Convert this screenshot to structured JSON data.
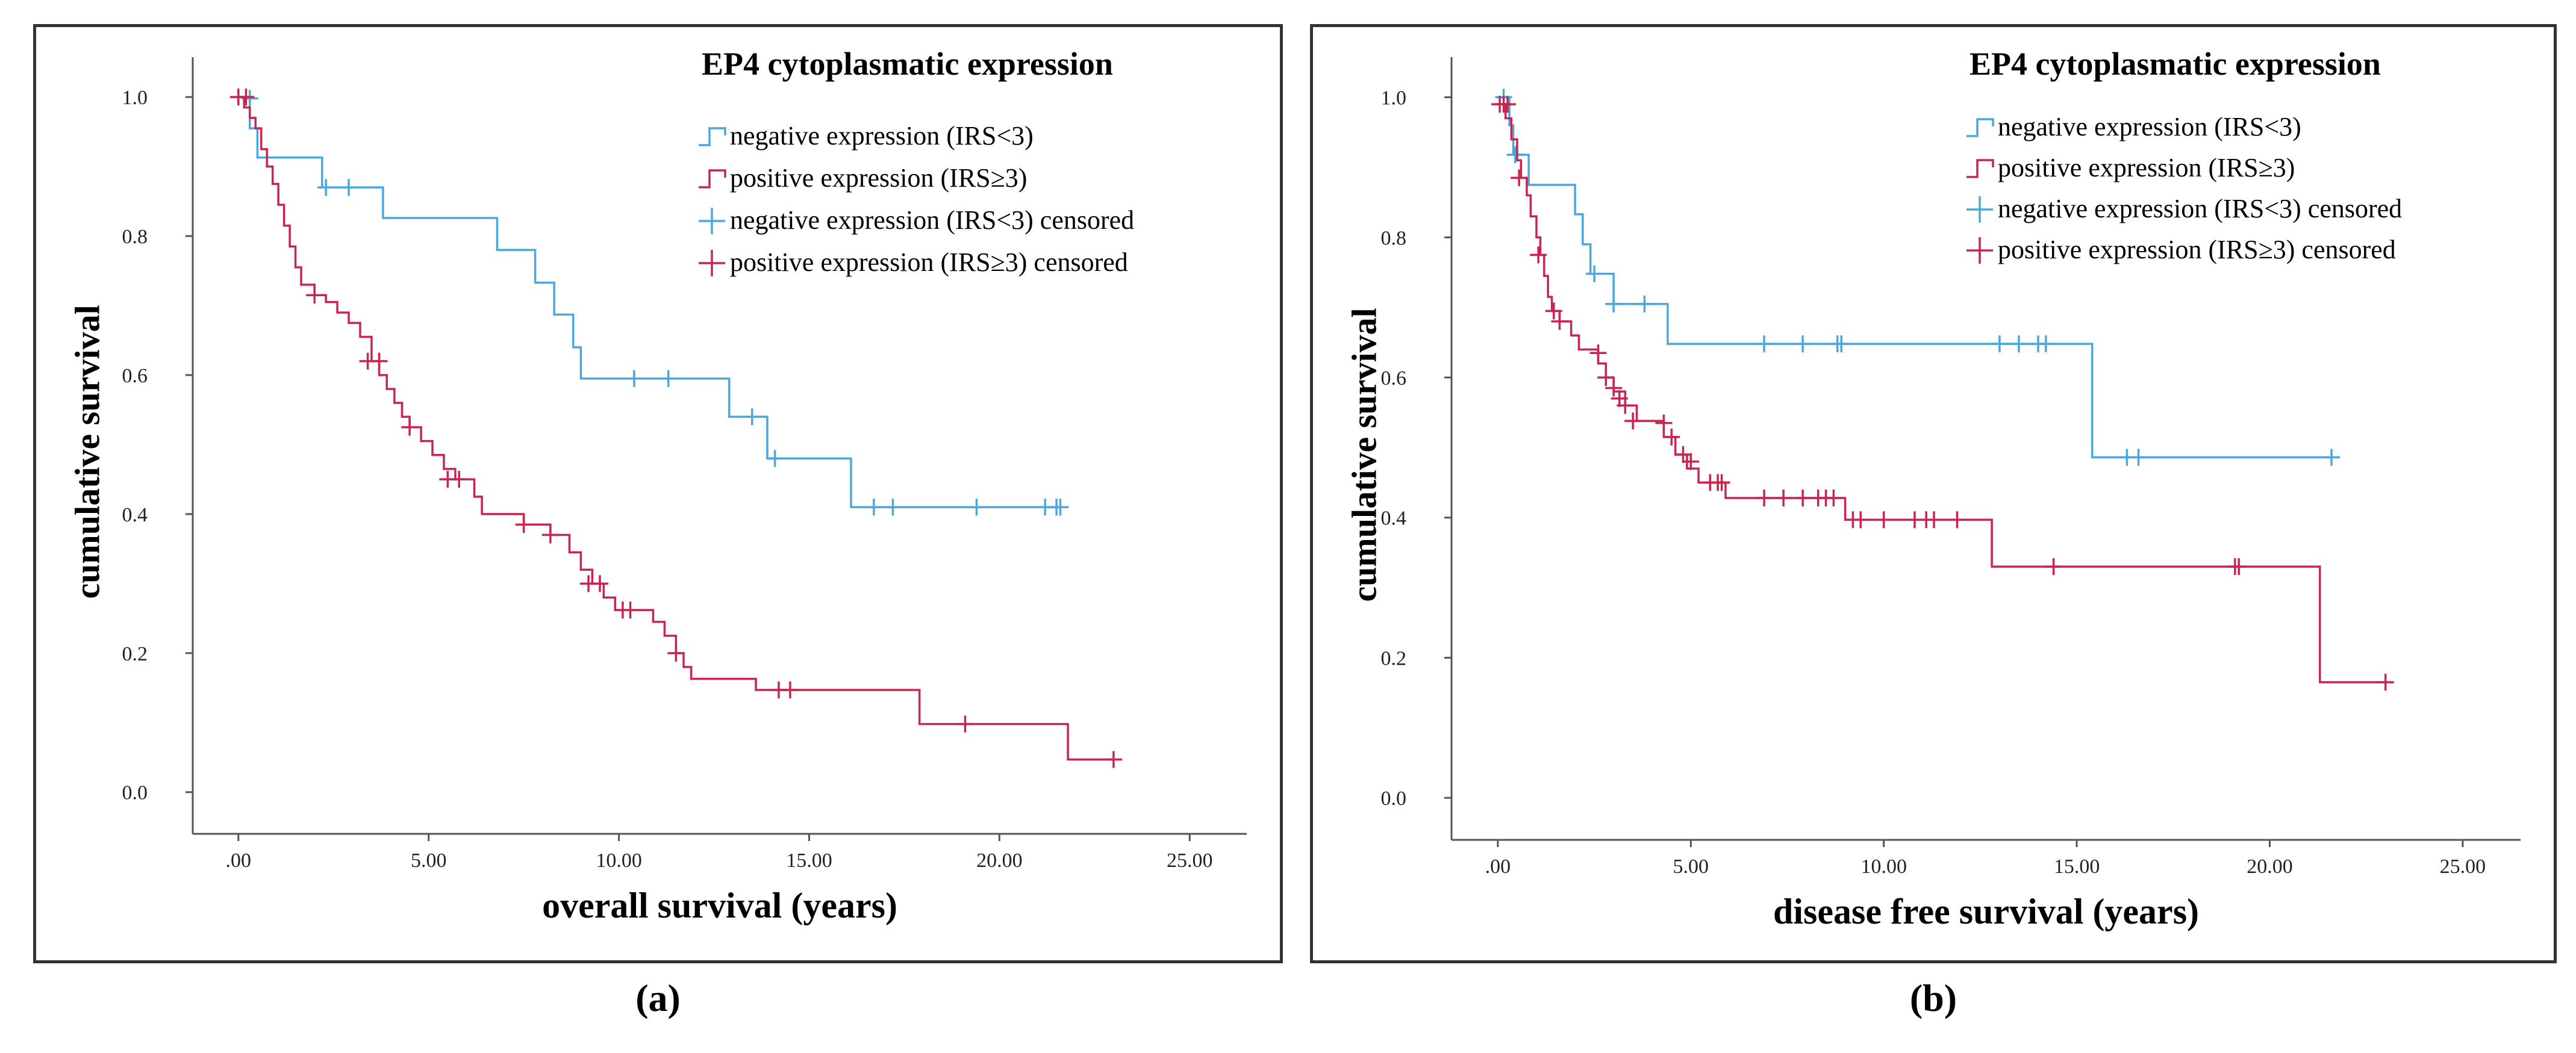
{
  "colors": {
    "negative": "#4aa8dd",
    "positive": "#c8264f",
    "axis": "#555555",
    "border": "#333333"
  },
  "chart_data": [
    {
      "type": "line",
      "subtype": "kaplan-meier-step",
      "title": "EP4 cytoplasmatic expression",
      "xlabel": "overall survival (years)",
      "ylabel": "cumulative survival",
      "caption": "(a)",
      "xlim": [
        -1.2,
        26.5
      ],
      "ylim": [
        -0.06,
        1.04
      ],
      "x_ticks": [
        ".00",
        "5.00",
        "10.00",
        "15.00",
        "20.00",
        "25.00"
      ],
      "y_ticks": [
        "0.0",
        "0.2",
        "0.4",
        "0.6",
        "0.8",
        "1.0"
      ],
      "legend_position": "top-right",
      "legend_labels": [
        "negative expression (IRS<3)",
        "positive expression (IRS≥3)",
        "negative expression (IRS<3) censored",
        "positive expression (IRS≥3) censored"
      ],
      "series": [
        {
          "name": "negative expression (IRS<3)",
          "color_key": "negative",
          "steps": [
            [
              0,
              1.0
            ],
            [
              0.3,
              0.955
            ],
            [
              0.5,
              0.913
            ],
            [
              2.2,
              0.87
            ],
            [
              3.8,
              0.826
            ],
            [
              6.8,
              0.78
            ],
            [
              7.8,
              0.733
            ],
            [
              8.3,
              0.687
            ],
            [
              8.8,
              0.64
            ],
            [
              9.0,
              0.595
            ],
            [
              12.9,
              0.54
            ],
            [
              13.9,
              0.48
            ],
            [
              16.1,
              0.41
            ],
            [
              21.6,
              0.41
            ]
          ],
          "censored": [
            [
              0.3,
              0.998
            ],
            [
              2.3,
              0.87
            ],
            [
              2.9,
              0.87
            ],
            [
              10.4,
              0.595
            ],
            [
              11.3,
              0.595
            ],
            [
              13.5,
              0.54
            ],
            [
              14.1,
              0.48
            ],
            [
              16.7,
              0.41
            ],
            [
              17.2,
              0.41
            ],
            [
              19.4,
              0.41
            ],
            [
              21.2,
              0.41
            ],
            [
              21.5,
              0.41
            ],
            [
              21.6,
              0.41
            ]
          ]
        },
        {
          "name": "positive expression (IRS≥3)",
          "color_key": "positive",
          "steps": [
            [
              0,
              1.0
            ],
            [
              0.15,
              0.985
            ],
            [
              0.3,
              0.97
            ],
            [
              0.45,
              0.955
            ],
            [
              0.6,
              0.925
            ],
            [
              0.75,
              0.9
            ],
            [
              0.9,
              0.875
            ],
            [
              1.05,
              0.845
            ],
            [
              1.2,
              0.815
            ],
            [
              1.35,
              0.785
            ],
            [
              1.5,
              0.755
            ],
            [
              1.65,
              0.73
            ],
            [
              2.0,
              0.715
            ],
            [
              2.3,
              0.705
            ],
            [
              2.6,
              0.69
            ],
            [
              2.9,
              0.675
            ],
            [
              3.2,
              0.655
            ],
            [
              3.5,
              0.62
            ],
            [
              3.7,
              0.6
            ],
            [
              3.9,
              0.58
            ],
            [
              4.1,
              0.56
            ],
            [
              4.3,
              0.54
            ],
            [
              4.5,
              0.525
            ],
            [
              4.8,
              0.505
            ],
            [
              5.1,
              0.485
            ],
            [
              5.4,
              0.465
            ],
            [
              5.7,
              0.45
            ],
            [
              6.2,
              0.425
            ],
            [
              6.4,
              0.4
            ],
            [
              7.5,
              0.385
            ],
            [
              8.2,
              0.37
            ],
            [
              8.7,
              0.345
            ],
            [
              9.0,
              0.32
            ],
            [
              9.3,
              0.3
            ],
            [
              9.6,
              0.28
            ],
            [
              9.9,
              0.262
            ],
            [
              10.9,
              0.245
            ],
            [
              11.2,
              0.225
            ],
            [
              11.5,
              0.2
            ],
            [
              11.7,
              0.18
            ],
            [
              11.9,
              0.163
            ],
            [
              13.6,
              0.147
            ],
            [
              17.9,
              0.098
            ],
            [
              21.8,
              0.047
            ],
            [
              23.0,
              0.047
            ]
          ],
          "censored": [
            [
              0,
              1.0
            ],
            [
              0.2,
              1.0
            ],
            [
              2.0,
              0.715
            ],
            [
              3.4,
              0.62
            ],
            [
              3.7,
              0.62
            ],
            [
              4.5,
              0.525
            ],
            [
              5.5,
              0.45
            ],
            [
              5.8,
              0.45
            ],
            [
              7.5,
              0.385
            ],
            [
              8.2,
              0.37
            ],
            [
              9.2,
              0.3
            ],
            [
              9.5,
              0.3
            ],
            [
              10.1,
              0.262
            ],
            [
              10.3,
              0.262
            ],
            [
              11.5,
              0.2
            ],
            [
              14.2,
              0.147
            ],
            [
              14.5,
              0.147
            ],
            [
              19.1,
              0.098
            ],
            [
              23.0,
              0.047
            ]
          ]
        }
      ]
    },
    {
      "type": "line",
      "subtype": "kaplan-meier-step",
      "title": "EP4 cytoplasmatic expression",
      "xlabel": "disease free survival (years)",
      "ylabel": "cumulative survival",
      "caption": "(b)",
      "xlim": [
        -1.2,
        26.5
      ],
      "ylim": [
        -0.06,
        1.04
      ],
      "x_ticks": [
        ".00",
        "5.00",
        "10.00",
        "15.00",
        "20.00",
        "25.00"
      ],
      "y_ticks": [
        "0.0",
        "0.2",
        "0.4",
        "0.6",
        "0.8",
        "1.0"
      ],
      "legend_position": "top-right",
      "legend_labels": [
        "negative expression (IRS<3)",
        "positive expression (IRS≥3)",
        "negative expression (IRS<3) censored",
        "positive expression (IRS≥3) censored"
      ],
      "series": [
        {
          "name": "negative expression (IRS<3)",
          "color_key": "negative",
          "steps": [
            [
              0,
              1.0
            ],
            [
              0.3,
              0.96
            ],
            [
              0.4,
              0.918
            ],
            [
              0.8,
              0.875
            ],
            [
              2.0,
              0.833
            ],
            [
              2.2,
              0.79
            ],
            [
              2.4,
              0.748
            ],
            [
              3.0,
              0.705
            ],
            [
              4.4,
              0.648
            ],
            [
              15.4,
              0.486
            ],
            [
              21.6,
              0.486
            ]
          ],
          "censored": [
            [
              0.15,
              1.0
            ],
            [
              0.45,
              0.918
            ],
            [
              2.5,
              0.748
            ],
            [
              3.0,
              0.705
            ],
            [
              3.8,
              0.705
            ],
            [
              6.9,
              0.648
            ],
            [
              7.9,
              0.648
            ],
            [
              8.8,
              0.648
            ],
            [
              8.9,
              0.648
            ],
            [
              13.0,
              0.648
            ],
            [
              13.5,
              0.648
            ],
            [
              14.0,
              0.648
            ],
            [
              14.2,
              0.648
            ],
            [
              16.3,
              0.486
            ],
            [
              16.6,
              0.486
            ],
            [
              21.6,
              0.486
            ]
          ]
        },
        {
          "name": "positive expression (IRS≥3)",
          "color_key": "positive",
          "steps": [
            [
              0,
              0.99
            ],
            [
              0.2,
              0.97
            ],
            [
              0.35,
              0.94
            ],
            [
              0.5,
              0.91
            ],
            [
              0.6,
              0.885
            ],
            [
              0.75,
              0.86
            ],
            [
              0.85,
              0.83
            ],
            [
              1.0,
              0.8
            ],
            [
              1.1,
              0.775
            ],
            [
              1.2,
              0.745
            ],
            [
              1.3,
              0.715
            ],
            [
              1.4,
              0.695
            ],
            [
              1.6,
              0.68
            ],
            [
              1.9,
              0.66
            ],
            [
              2.1,
              0.64
            ],
            [
              2.6,
              0.62
            ],
            [
              2.8,
              0.6
            ],
            [
              3.0,
              0.58
            ],
            [
              3.3,
              0.56
            ],
            [
              3.6,
              0.538
            ],
            [
              4.3,
              0.515
            ],
            [
              4.6,
              0.49
            ],
            [
              4.9,
              0.47
            ],
            [
              5.2,
              0.45
            ],
            [
              5.9,
              0.428
            ],
            [
              9.0,
              0.397
            ],
            [
              12.8,
              0.33
            ],
            [
              21.3,
              0.165
            ],
            [
              23.0,
              0.165
            ]
          ],
          "censored": [
            [
              0.05,
              0.99
            ],
            [
              0.15,
              0.99
            ],
            [
              0.25,
              0.99
            ],
            [
              0.55,
              0.885
            ],
            [
              1.05,
              0.775
            ],
            [
              1.45,
              0.695
            ],
            [
              1.6,
              0.68
            ],
            [
              2.6,
              0.635
            ],
            [
              2.8,
              0.6
            ],
            [
              3.0,
              0.585
            ],
            [
              3.15,
              0.57
            ],
            [
              3.3,
              0.56
            ],
            [
              3.5,
              0.538
            ],
            [
              4.3,
              0.535
            ],
            [
              4.5,
              0.515
            ],
            [
              4.8,
              0.49
            ],
            [
              5.0,
              0.48
            ],
            [
              5.5,
              0.45
            ],
            [
              5.7,
              0.45
            ],
            [
              5.8,
              0.45
            ],
            [
              6.9,
              0.428
            ],
            [
              7.4,
              0.428
            ],
            [
              7.9,
              0.428
            ],
            [
              8.3,
              0.428
            ],
            [
              8.5,
              0.428
            ],
            [
              8.7,
              0.428
            ],
            [
              9.2,
              0.397
            ],
            [
              9.4,
              0.397
            ],
            [
              10.0,
              0.397
            ],
            [
              10.8,
              0.397
            ],
            [
              11.1,
              0.397
            ],
            [
              11.3,
              0.397
            ],
            [
              11.9,
              0.397
            ],
            [
              14.4,
              0.33
            ],
            [
              19.1,
              0.33
            ],
            [
              19.2,
              0.33
            ],
            [
              23.0,
              0.165
            ]
          ]
        }
      ]
    }
  ]
}
